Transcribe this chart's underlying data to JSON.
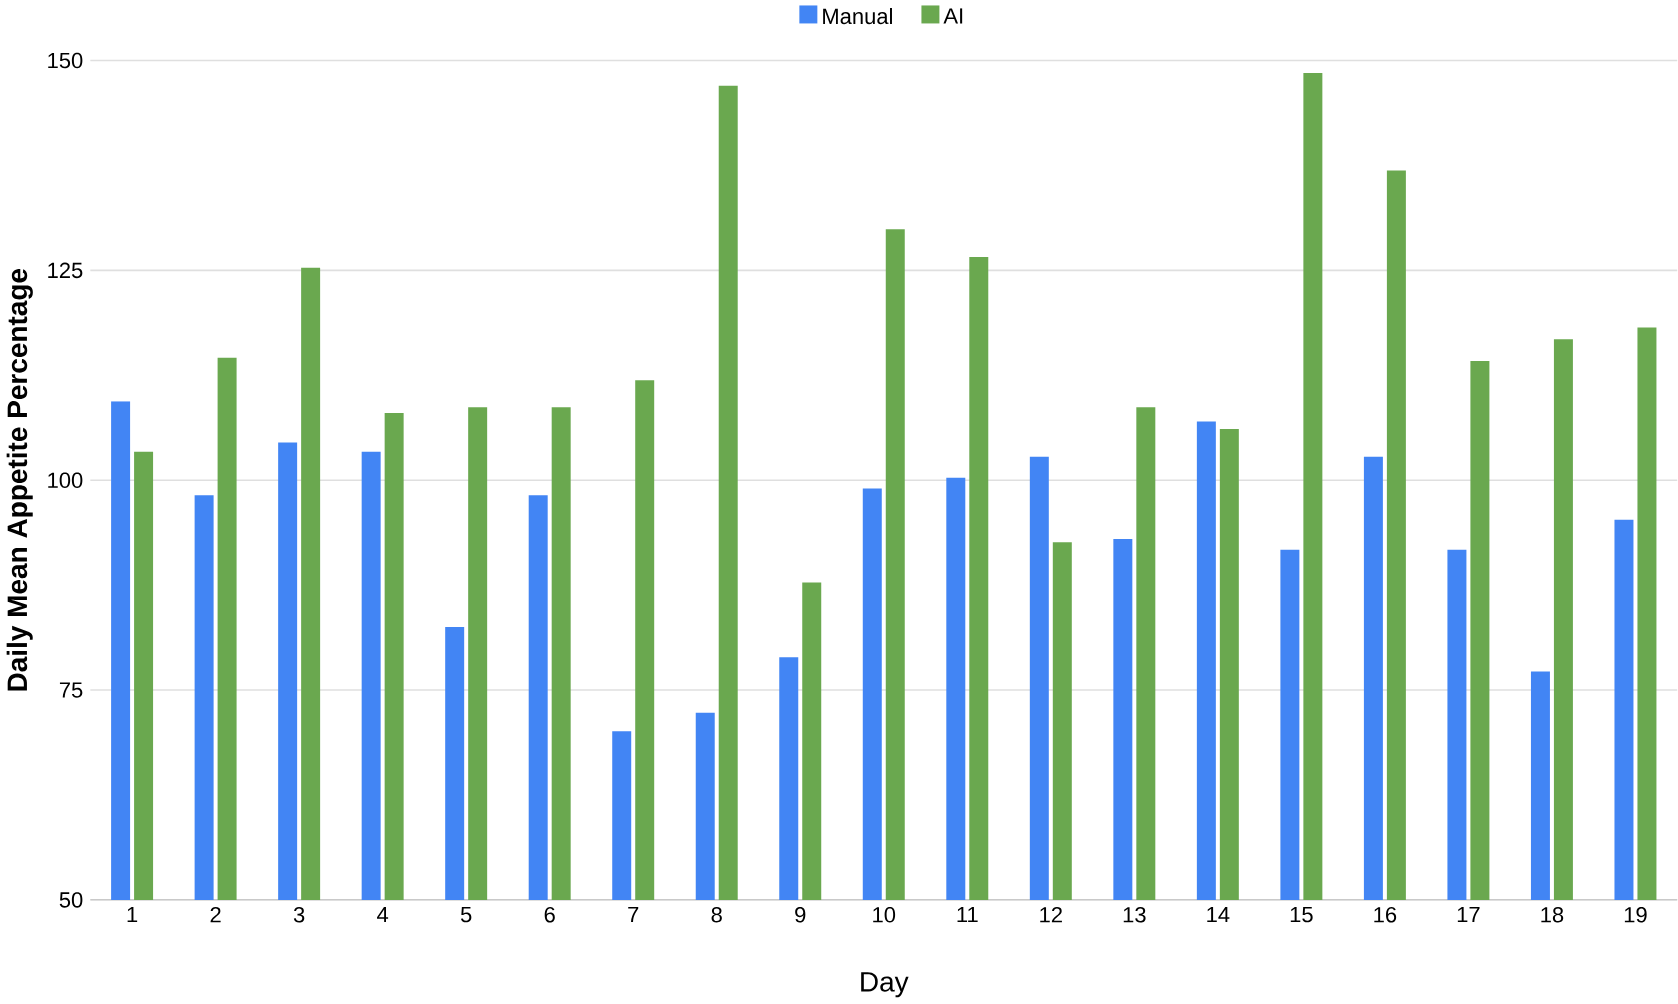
{
  "chart_data": {
    "type": "bar",
    "xlabel": "Day",
    "ylabel": "Daily Mean Appetite Percentage",
    "categories": [
      "1",
      "2",
      "3",
      "4",
      "5",
      "6",
      "7",
      "8",
      "9",
      "10",
      "11",
      "12",
      "13",
      "14",
      "15",
      "16",
      "17",
      "18",
      "19"
    ],
    "series": [
      {
        "name": "Manual",
        "color": "#4285f4",
        "values": [
          109.4,
          98.2,
          104.5,
          103.4,
          82.5,
          98.2,
          70.1,
          72.3,
          78.9,
          99,
          100.3,
          102.8,
          93,
          107,
          91.7,
          102.8,
          91.7,
          77.2,
          95.3
        ]
      },
      {
        "name": "AI",
        "color": "#6aa84f",
        "values": [
          103.4,
          114.6,
          125.3,
          108,
          108.7,
          108.7,
          111.9,
          147,
          87.8,
          129.9,
          126.6,
          92.6,
          108.7,
          106.1,
          148.5,
          136.9,
          114.2,
          116.8,
          118.2
        ]
      }
    ],
    "ylim": [
      50,
      150
    ],
    "yticks": [
      50,
      75,
      100,
      125,
      150
    ],
    "grid": "y",
    "legend": "top"
  }
}
